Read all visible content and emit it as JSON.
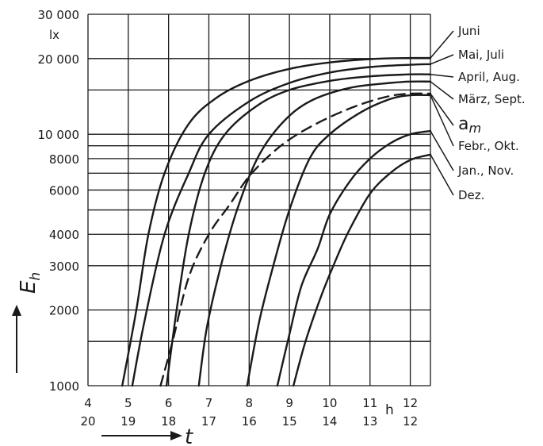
{
  "chart_data": {
    "type": "line",
    "y_scale": "log",
    "ylim": [
      1000,
      30000
    ],
    "xlim": [
      4,
      12.5
    ],
    "y_unit": "lx",
    "ylabel_symbol": "E",
    "ylabel_subscript": "h",
    "xlabel": "t",
    "x_unit": "h",
    "grid": true,
    "yticks": [
      {
        "value": 1000,
        "label": "1000"
      },
      {
        "value": 1500,
        "label": ""
      },
      {
        "value": 2000,
        "label": "2000"
      },
      {
        "value": 3000,
        "label": "3000"
      },
      {
        "value": 4000,
        "label": "4000"
      },
      {
        "value": 5000,
        "label": ""
      },
      {
        "value": 6000,
        "label": "6000"
      },
      {
        "value": 7000,
        "label": ""
      },
      {
        "value": 8000,
        "label": "8000"
      },
      {
        "value": 9000,
        "label": ""
      },
      {
        "value": 10000,
        "label": "10 000"
      },
      {
        "value": 15000,
        "label": ""
      },
      {
        "value": 20000,
        "label": "20 000"
      },
      {
        "value": 30000,
        "label": "30 000"
      }
    ],
    "xticks_morning": [
      "4",
      "5",
      "6",
      "7",
      "8",
      "9",
      "10",
      "11",
      "12"
    ],
    "xticks_afternoon": [
      "20",
      "19",
      "18",
      "17",
      "16",
      "15",
      "14",
      "13",
      "12"
    ],
    "series": [
      {
        "name": "Juni",
        "dashed": false,
        "points": [
          [
            4.85,
            1000
          ],
          [
            5.2,
            2000
          ],
          [
            5.5,
            4000
          ],
          [
            5.9,
            7000
          ],
          [
            6.5,
            11000
          ],
          [
            7.2,
            14000
          ],
          [
            8,
            16300
          ],
          [
            9,
            18200
          ],
          [
            10,
            19300
          ],
          [
            11,
            19900
          ],
          [
            12,
            20100
          ],
          [
            12.5,
            20100
          ]
        ]
      },
      {
        "name": "Mai, Juli",
        "dashed": false,
        "points": [
          [
            5.1,
            1000
          ],
          [
            5.4,
            1800
          ],
          [
            5.9,
            4000
          ],
          [
            6.5,
            7000
          ],
          [
            7,
            10000
          ],
          [
            8,
            13500
          ],
          [
            9,
            16000
          ],
          [
            10,
            17600
          ],
          [
            11,
            18500
          ],
          [
            12,
            18900
          ],
          [
            12.5,
            19000
          ]
        ]
      },
      {
        "name": "April, Aug.",
        "dashed": false,
        "points": [
          [
            5.95,
            1000
          ],
          [
            6.2,
            2000
          ],
          [
            6.5,
            4000
          ],
          [
            6.9,
            7000
          ],
          [
            7.4,
            10000
          ],
          [
            8.2,
            13000
          ],
          [
            9,
            15000
          ],
          [
            10,
            16300
          ],
          [
            11,
            17000
          ],
          [
            12,
            17300
          ],
          [
            12.5,
            17300
          ]
        ]
      },
      {
        "name": "März, Sept.",
        "dashed": false,
        "points": [
          [
            6.75,
            1000
          ],
          [
            6.95,
            1700
          ],
          [
            7.3,
            3000
          ],
          [
            7.7,
            5000
          ],
          [
            8.2,
            8000
          ],
          [
            8.8,
            11000
          ],
          [
            9.5,
            13500
          ],
          [
            10.5,
            15300
          ],
          [
            11.5,
            16000
          ],
          [
            12,
            16200
          ],
          [
            12.5,
            16200
          ]
        ]
      },
      {
        "name": "a_m",
        "dashed": true,
        "points": [
          [
            5.8,
            1000
          ],
          [
            6.1,
            1500
          ],
          [
            6.5,
            2700
          ],
          [
            7,
            4000
          ],
          [
            7.5,
            5200
          ],
          [
            8,
            6800
          ],
          [
            8.6,
            8500
          ],
          [
            9.2,
            10000
          ],
          [
            10,
            11700
          ],
          [
            10.8,
            13200
          ],
          [
            11.5,
            14200
          ],
          [
            12,
            14500
          ],
          [
            12.5,
            14500
          ]
        ]
      },
      {
        "name": "Febr., Okt.",
        "dashed": false,
        "points": [
          [
            7.95,
            1000
          ],
          [
            8.25,
            1800
          ],
          [
            8.6,
            3000
          ],
          [
            9,
            5000
          ],
          [
            9.5,
            8000
          ],
          [
            10,
            10000
          ],
          [
            10.8,
            12300
          ],
          [
            11.5,
            13800
          ],
          [
            12,
            14300
          ],
          [
            12.5,
            14300
          ]
        ]
      },
      {
        "name": "Jan., Nov.",
        "dashed": false,
        "points": [
          [
            8.7,
            1000
          ],
          [
            9,
            1600
          ],
          [
            9.3,
            2500
          ],
          [
            9.7,
            3500
          ],
          [
            10,
            4800
          ],
          [
            10.5,
            6500
          ],
          [
            11,
            8000
          ],
          [
            11.5,
            9200
          ],
          [
            12,
            10000
          ],
          [
            12.5,
            10300
          ]
        ]
      },
      {
        "name": "Dez.",
        "dashed": false,
        "points": [
          [
            9.1,
            1000
          ],
          [
            9.4,
            1500
          ],
          [
            9.8,
            2300
          ],
          [
            10.2,
            3300
          ],
          [
            10.5,
            4200
          ],
          [
            11,
            5800
          ],
          [
            11.5,
            7000
          ],
          [
            12,
            7900
          ],
          [
            12.5,
            8300
          ]
        ]
      }
    ],
    "legend_labels": [
      "Juni",
      "Mai, Juli",
      "April, Aug.",
      "März, Sept.",
      "a",
      "Febr., Okt.",
      "Jan., Nov.",
      "Dez."
    ],
    "legend_am_subscript": "m"
  }
}
